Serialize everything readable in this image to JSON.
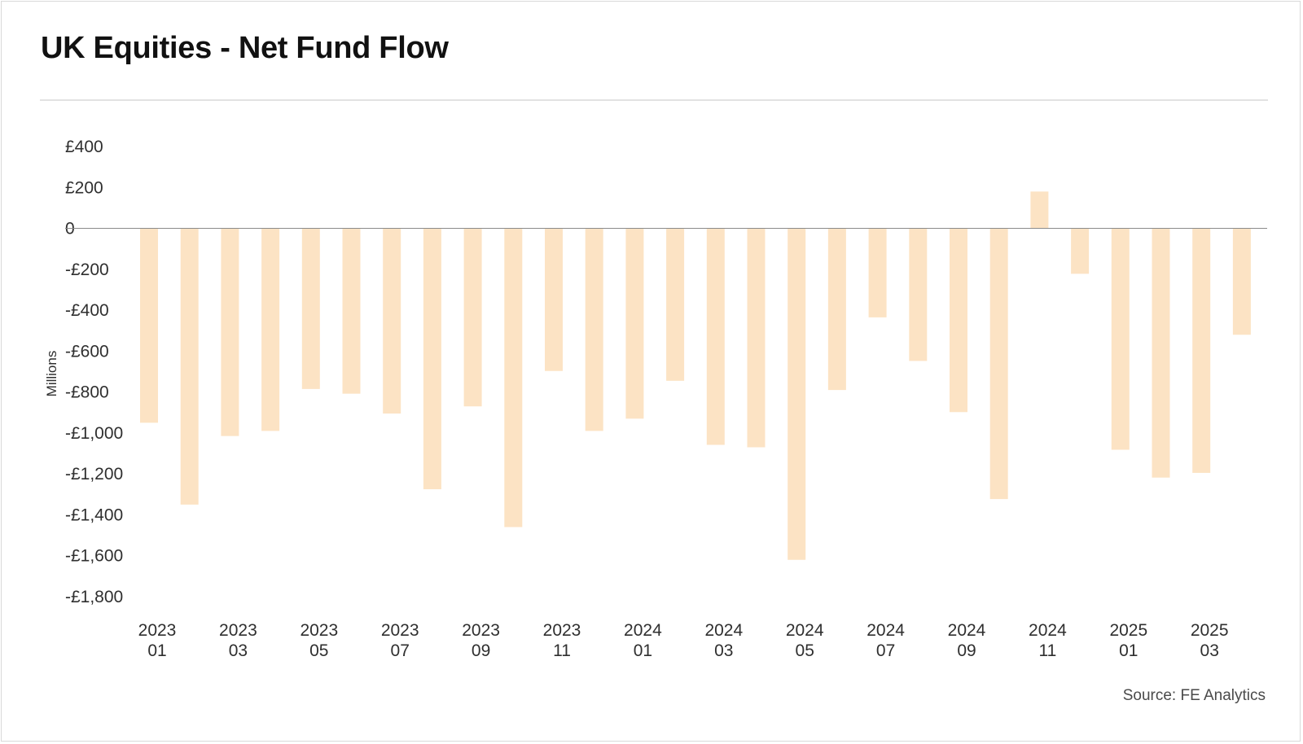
{
  "title": "UK Equities - Net Fund Flow",
  "source": "Source: FE Analytics",
  "colors": {
    "bar": "#fce3c4",
    "zero_line": "#8a8a8a"
  },
  "chart_data": {
    "type": "bar",
    "title": "UK Equities - Net Fund Flow",
    "ylabel": "Millions",
    "ylim": [
      -1800,
      400
    ],
    "yticks": [
      400,
      200,
      0,
      -200,
      -400,
      -600,
      -800,
      -1000,
      -1200,
      -1400,
      -1600,
      -1800
    ],
    "ytick_labels": [
      "£400",
      "£200",
      "0",
      "-£200",
      "-£400",
      "-£600",
      "-£800",
      "-£1,000",
      "-£1,200",
      "-£1,400",
      "-£1,600",
      "-£1,800"
    ],
    "categories": [
      "2023 01",
      "2023 02",
      "2023 03",
      "2023 04",
      "2023 05",
      "2023 06",
      "2023 07",
      "2023 08",
      "2023 09",
      "2023 10",
      "2023 11",
      "2023 12",
      "2024 01",
      "2024 02",
      "2024 03",
      "2024 04",
      "2024 05",
      "2024 06",
      "2024 07",
      "2024 08",
      "2024 09",
      "2024 10",
      "2024 11",
      "2024 12",
      "2025 01",
      "2025 02",
      "2025 03",
      "2025 04"
    ],
    "values": [
      -950,
      -1350,
      -1015,
      -990,
      -785,
      -808,
      -905,
      -1275,
      -870,
      -1460,
      -697,
      -990,
      -930,
      -745,
      -1058,
      -1070,
      -1620,
      -790,
      -435,
      -648,
      -898,
      -1323,
      180,
      -222,
      -1082,
      -1218,
      -1195,
      -520
    ],
    "xtick_labels": [
      {
        "year": "2023",
        "month": "01"
      },
      {
        "year": "2023",
        "month": "03"
      },
      {
        "year": "2023",
        "month": "05"
      },
      {
        "year": "2023",
        "month": "07"
      },
      {
        "year": "2023",
        "month": "09"
      },
      {
        "year": "2023",
        "month": "11"
      },
      {
        "year": "2024",
        "month": "01"
      },
      {
        "year": "2024",
        "month": "03"
      },
      {
        "year": "2024",
        "month": "05"
      },
      {
        "year": "2024",
        "month": "07"
      },
      {
        "year": "2024",
        "month": "09"
      },
      {
        "year": "2024",
        "month": "11"
      },
      {
        "year": "2025",
        "month": "01"
      },
      {
        "year": "2025",
        "month": "03"
      }
    ],
    "grid": false,
    "legend": "none"
  }
}
